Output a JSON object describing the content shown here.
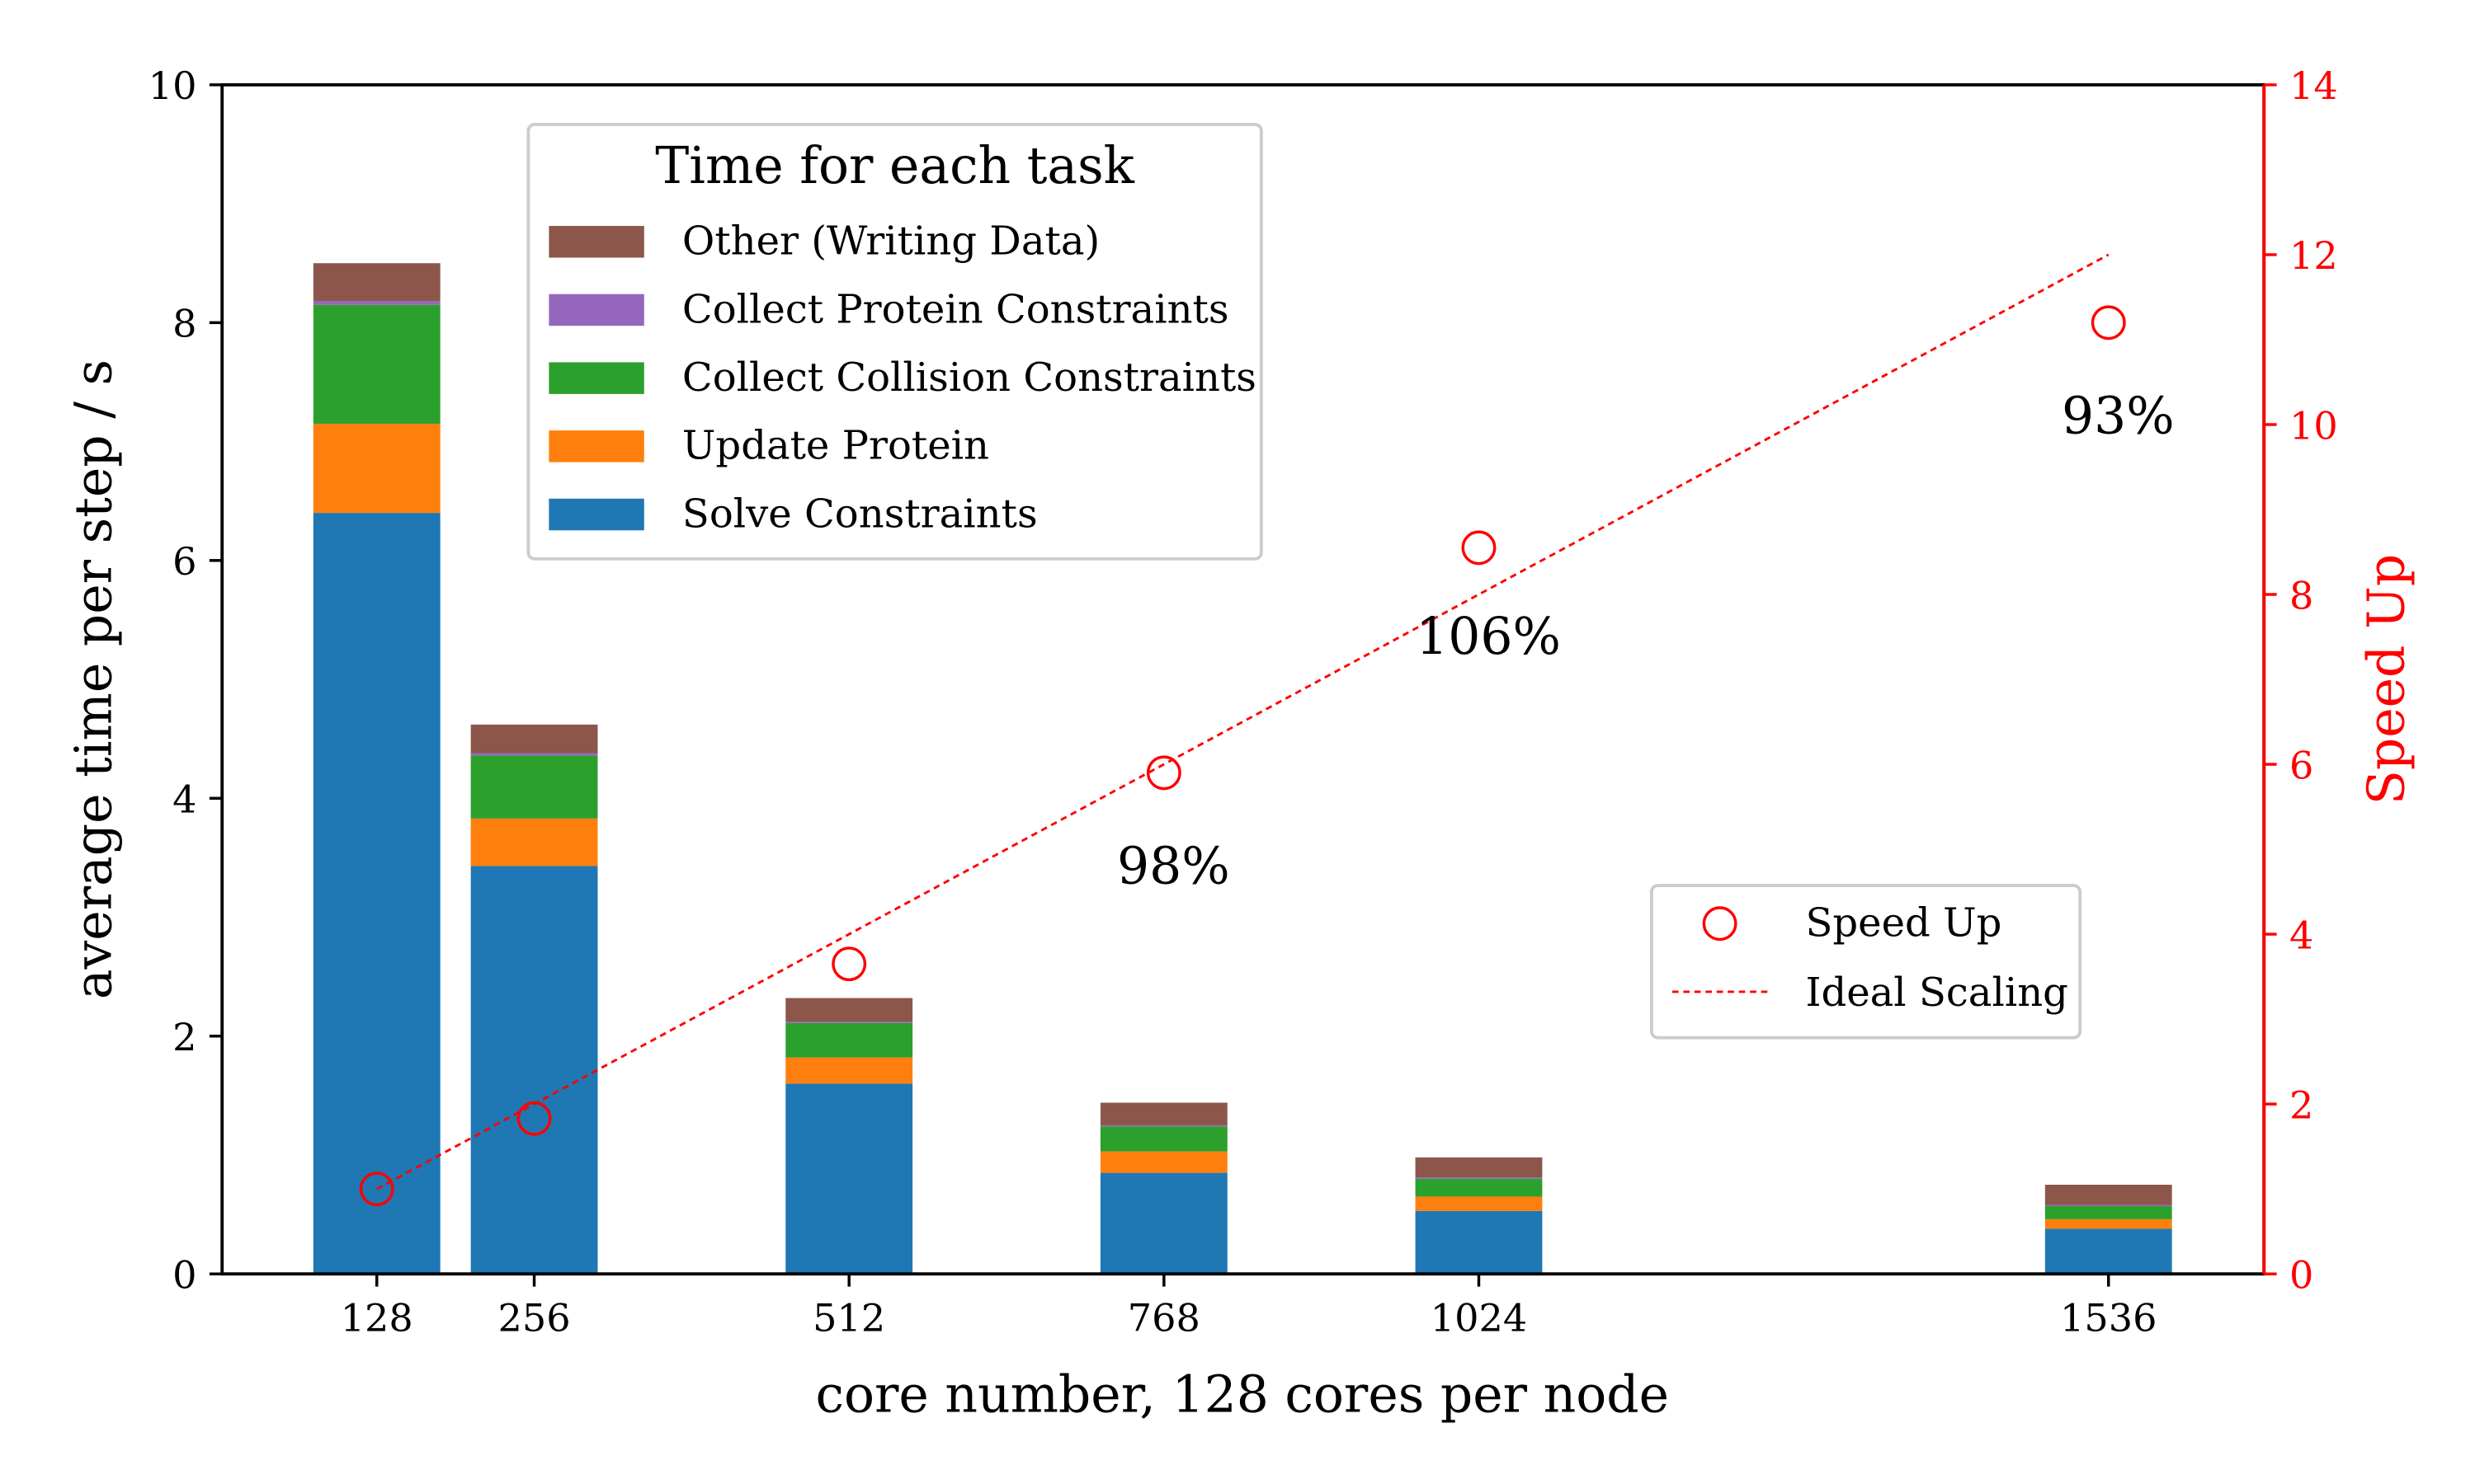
{
  "chart_data": {
    "type": "bar",
    "categories": [
      "128",
      "256",
      "512",
      "768",
      "1024",
      "1536"
    ],
    "x": [
      128,
      256,
      512,
      768,
      1024,
      1536
    ],
    "xlabel": "core number, 128 cores per node",
    "ylabel": "average time per step / s",
    "ylim": [
      0,
      10
    ],
    "yticks": [
      "0",
      "2",
      "4",
      "6",
      "8",
      "10"
    ],
    "y2label": "Speed Up",
    "y2lim": [
      0,
      14
    ],
    "y2ticks": [
      "0",
      "2",
      "4",
      "6",
      "8",
      "10",
      "12",
      "14"
    ],
    "series": [
      {
        "name": "Solve Constraints",
        "color": "#1f77b4",
        "values": [
          6.4,
          3.43,
          1.6,
          0.85,
          0.53,
          0.38
        ]
      },
      {
        "name": "Update Protein",
        "color": "#ff7f0e",
        "values": [
          0.75,
          0.4,
          0.22,
          0.18,
          0.12,
          0.08
        ]
      },
      {
        "name": "Collect Collision Constraints",
        "color": "#2ca02c",
        "values": [
          1.0,
          0.53,
          0.29,
          0.21,
          0.15,
          0.11
        ]
      },
      {
        "name": "Collect Protein Constraints",
        "color": "#9467bd",
        "values": [
          0.03,
          0.02,
          0.01,
          0.01,
          0.01,
          0.01
        ]
      },
      {
        "name": "Other (Writing Data)",
        "color": "#8c564b",
        "values": [
          0.32,
          0.24,
          0.2,
          0.19,
          0.17,
          0.17
        ]
      }
    ],
    "legend_title": "Time for each task",
    "speedup": {
      "name": "Speed Up",
      "color": "#ff0000",
      "values": [
        1.0,
        1.83,
        3.65,
        5.9,
        8.55,
        11.2
      ]
    },
    "ideal": {
      "name": "Ideal Scaling",
      "color": "#ff0000",
      "x": [
        128,
        1536
      ],
      "values": [
        1.0,
        12.0
      ]
    },
    "annotations": [
      {
        "text": "98%",
        "x": 768,
        "y2": 4.6
      },
      {
        "text": "106%",
        "x": 1024,
        "y2": 7.3
      },
      {
        "text": "93%",
        "x": 1536,
        "y2": 9.9
      }
    ]
  }
}
